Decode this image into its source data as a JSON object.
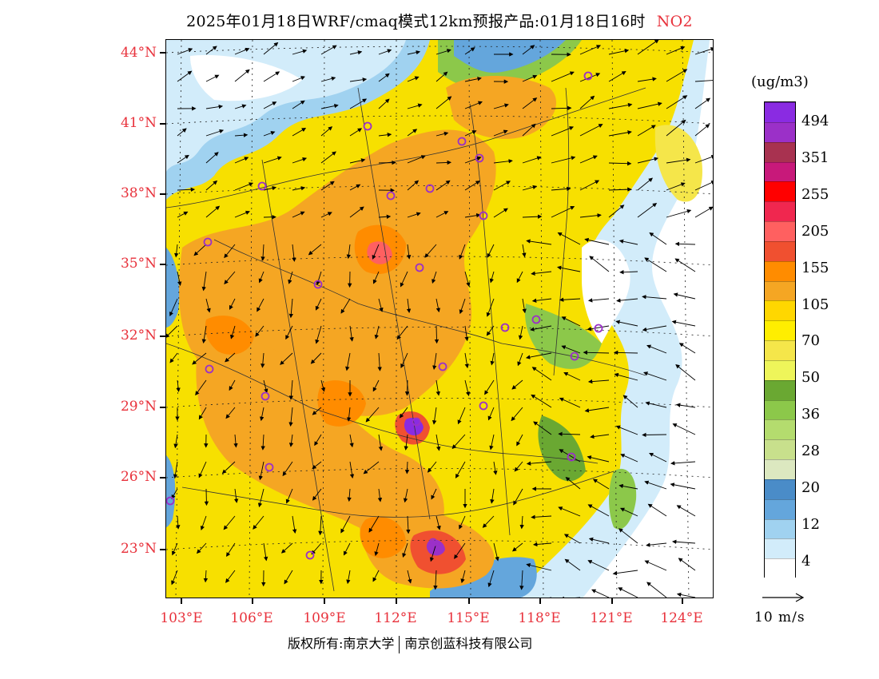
{
  "title": {
    "text": "2025年01月18日WRF/cmaq模式12km预报产品:01月18日16时",
    "pollutant": "NO2"
  },
  "axes": {
    "lat_labels": [
      "44°N",
      "41°N",
      "38°N",
      "35°N",
      "32°N",
      "29°N",
      "26°N",
      "23°N"
    ],
    "lon_labels": [
      "103°E",
      "106°E",
      "109°E",
      "112°E",
      "115°E",
      "118°E",
      "121°E",
      "124°E"
    ]
  },
  "legend": {
    "unit": "(ug/m3)",
    "labels": [
      "494",
      "351",
      "255",
      "205",
      "155",
      "105",
      "70",
      "50",
      "36",
      "28",
      "20",
      "12",
      "4"
    ],
    "colors": [
      "#8a2be2",
      "#9b30c8",
      "#a83250",
      "#c8197a",
      "#ff0000",
      "#f0274f",
      "#ff6060",
      "#f05030",
      "#ff8c00",
      "#f5a623",
      "#ffd700",
      "#ffee00",
      "#f5e64a",
      "#eef55a",
      "#6aa832",
      "#8cc84a",
      "#b4dc6e",
      "#c8e08c",
      "#dce8c0",
      "#4a8cc8",
      "#64a6dc",
      "#a0d2f0",
      "#d2ecfa",
      "#ffffff"
    ]
  },
  "reference_vector": {
    "label": "10 m/s"
  },
  "footer": {
    "left": "版权所有:南京大学",
    "right": "南京创蓝科技有限公司"
  }
}
